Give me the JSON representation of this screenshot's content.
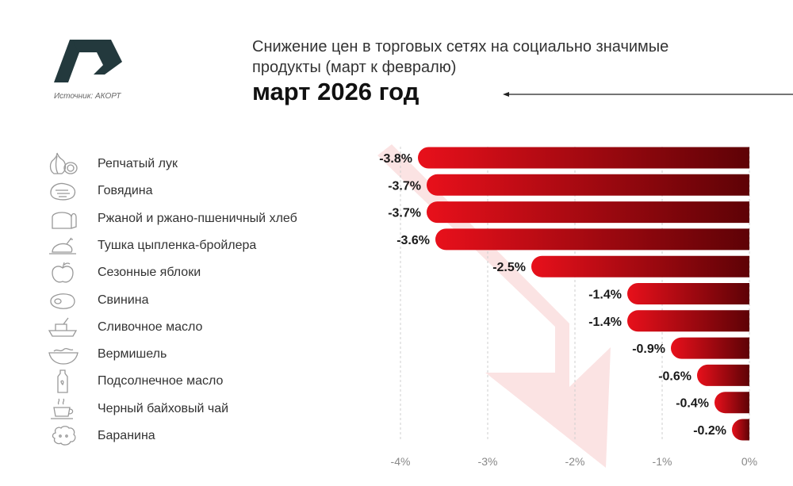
{
  "header": {
    "subtitle_line1": "Снижение цен в торговых сетях на социально значимые",
    "subtitle_line2": "продукты (март к февралю)",
    "title": "март 2026 год",
    "source": "Источник: АКОРТ"
  },
  "colors": {
    "bar_light": "#e8101b",
    "bar_dark": "#5e0206",
    "logo": "#23393d",
    "watermark_arrow": "#fbe3e3"
  },
  "icons": [
    "onion-icon",
    "beef-icon",
    "bread-icon",
    "chicken-icon",
    "apple-icon",
    "pork-icon",
    "butter-icon",
    "noodles-icon",
    "oil-bottle-icon",
    "tea-cup-icon",
    "lamb-icon"
  ],
  "chart_data": {
    "type": "bar",
    "orientation": "horizontal",
    "categories": [
      "Репчатый лук",
      "Говядина",
      "Ржаной и ржано-пшеничный хлеб",
      "Тушка цыпленка-бройлера",
      "Сезонные яблоки",
      "Свинина",
      "Сливочное масло",
      "Вермишель",
      "Подсолнечное масло",
      "Черный байховый чай",
      "Баранина"
    ],
    "values": [
      -3.8,
      -3.7,
      -3.7,
      -3.6,
      -2.5,
      -1.4,
      -1.4,
      -0.9,
      -0.6,
      -0.4,
      -0.2
    ],
    "value_labels": [
      "-3.8%",
      "-3.7%",
      "-3.7%",
      "-3.6%",
      "-2.5%",
      "-1.4%",
      "-1.4%",
      "-0.9%",
      "-0.6%",
      "-0.4%",
      "-0.2%"
    ],
    "xlim": [
      -4,
      0
    ],
    "xticks": [
      -4,
      -3,
      -2,
      -1,
      0
    ],
    "xtick_labels": [
      "-4%",
      "-3%",
      "-2%",
      "-1%",
      "0%"
    ],
    "grid": "vertical dashed",
    "legend": "none"
  }
}
